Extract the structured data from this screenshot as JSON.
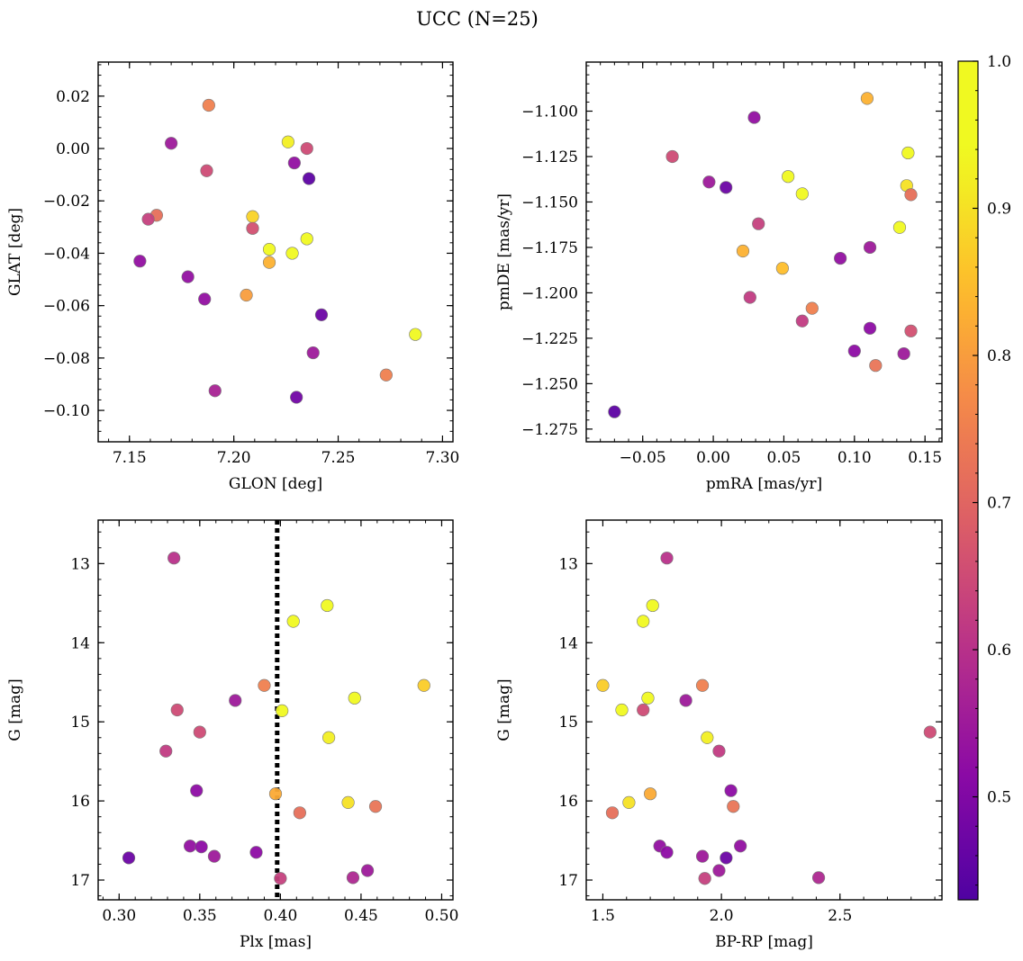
{
  "figure_title": "UCC (N=25)",
  "colorbar": {
    "range": [
      0.43,
      1.0
    ],
    "ticks": [
      "0.5",
      "0.6",
      "0.7",
      "0.8",
      "0.9",
      "1.0"
    ],
    "tick_values": [
      0.5,
      0.6,
      0.7,
      0.8,
      0.9,
      1.0
    ],
    "colormap": "plasma"
  },
  "chart_data": [
    {
      "type": "scatter",
      "xlabel": "GLON [deg]",
      "ylabel": "GLAT [deg]",
      "xlim": [
        7.135,
        7.305
      ],
      "ylim": [
        -0.112,
        0.033
      ],
      "xticks": [
        7.15,
        7.2,
        7.25,
        7.3
      ],
      "xtick_labels": [
        "7.15",
        "7.20",
        "7.25",
        "7.30"
      ],
      "yticks": [
        0.02,
        0.0,
        -0.02,
        -0.04,
        -0.06,
        -0.08,
        -0.1
      ],
      "ytick_labels": [
        "0.02",
        "0.00",
        "−0.02",
        "−0.04",
        "−0.06",
        "−0.08",
        "−0.10"
      ],
      "points": [
        {
          "x": 7.188,
          "y": 0.0165,
          "c": 0.75
        },
        {
          "x": 7.17,
          "y": 0.002,
          "c": 0.55
        },
        {
          "x": 7.226,
          "y": 0.0025,
          "c": 0.92
        },
        {
          "x": 7.235,
          "y": 0.0,
          "c": 0.65
        },
        {
          "x": 7.229,
          "y": -0.0055,
          "c": 0.53
        },
        {
          "x": 7.187,
          "y": -0.0085,
          "c": 0.65
        },
        {
          "x": 7.236,
          "y": -0.0115,
          "c": 0.45
        },
        {
          "x": 7.163,
          "y": -0.0255,
          "c": 0.72
        },
        {
          "x": 7.159,
          "y": -0.027,
          "c": 0.63
        },
        {
          "x": 7.209,
          "y": -0.026,
          "c": 0.88
        },
        {
          "x": 7.209,
          "y": -0.0305,
          "c": 0.66
        },
        {
          "x": 7.235,
          "y": -0.0345,
          "c": 0.97
        },
        {
          "x": 7.217,
          "y": -0.0385,
          "c": 1.0
        },
        {
          "x": 7.228,
          "y": -0.04,
          "c": 0.98
        },
        {
          "x": 7.155,
          "y": -0.043,
          "c": 0.53
        },
        {
          "x": 7.217,
          "y": -0.0435,
          "c": 0.83
        },
        {
          "x": 7.178,
          "y": -0.049,
          "c": 0.53
        },
        {
          "x": 7.206,
          "y": -0.056,
          "c": 0.8
        },
        {
          "x": 7.186,
          "y": -0.0575,
          "c": 0.53
        },
        {
          "x": 7.242,
          "y": -0.0635,
          "c": 0.47
        },
        {
          "x": 7.287,
          "y": -0.071,
          "c": 0.98
        },
        {
          "x": 7.238,
          "y": -0.078,
          "c": 0.55
        },
        {
          "x": 7.273,
          "y": -0.0865,
          "c": 0.75
        },
        {
          "x": 7.191,
          "y": -0.0925,
          "c": 0.57
        },
        {
          "x": 7.23,
          "y": -0.095,
          "c": 0.48
        }
      ]
    },
    {
      "type": "scatter",
      "xlabel": "pmRA [mas/yr]",
      "ylabel": "pmDE [mas/yr]",
      "xlim": [
        -0.09,
        0.162
      ],
      "ylim": [
        -1.282,
        -1.073
      ],
      "xticks": [
        -0.05,
        0.0,
        0.05,
        0.1,
        0.15
      ],
      "xtick_labels": [
        "−0.05",
        "0.00",
        "0.05",
        "0.10",
        "0.15"
      ],
      "yticks": [
        -1.1,
        -1.125,
        -1.15,
        -1.175,
        -1.2,
        -1.225,
        -1.25,
        -1.275
      ],
      "ytick_labels": [
        "−1.100",
        "−1.125",
        "−1.150",
        "−1.175",
        "−1.200",
        "−1.225",
        "−1.250",
        "−1.275"
      ],
      "points": [
        {
          "x": 0.109,
          "y": -1.093,
          "c": 0.83
        },
        {
          "x": 0.029,
          "y": -1.1035,
          "c": 0.53
        },
        {
          "x": -0.029,
          "y": -1.125,
          "c": 0.65
        },
        {
          "x": 0.138,
          "y": -1.123,
          "c": 0.98
        },
        {
          "x": 0.053,
          "y": -1.136,
          "c": 0.95
        },
        {
          "x": -0.003,
          "y": -1.139,
          "c": 0.55
        },
        {
          "x": 0.009,
          "y": -1.142,
          "c": 0.47
        },
        {
          "x": 0.137,
          "y": -1.141,
          "c": 0.9
        },
        {
          "x": 0.063,
          "y": -1.1455,
          "c": 0.98
        },
        {
          "x": 0.14,
          "y": -1.146,
          "c": 0.72
        },
        {
          "x": 0.032,
          "y": -1.162,
          "c": 0.63
        },
        {
          "x": 0.132,
          "y": -1.164,
          "c": 0.95
        },
        {
          "x": 0.111,
          "y": -1.175,
          "c": 0.55
        },
        {
          "x": 0.021,
          "y": -1.177,
          "c": 0.83
        },
        {
          "x": 0.09,
          "y": -1.181,
          "c": 0.53
        },
        {
          "x": 0.049,
          "y": -1.1865,
          "c": 0.85
        },
        {
          "x": 0.026,
          "y": -1.2025,
          "c": 0.62
        },
        {
          "x": 0.07,
          "y": -1.2085,
          "c": 0.75
        },
        {
          "x": 0.063,
          "y": -1.2155,
          "c": 0.62
        },
        {
          "x": 0.111,
          "y": -1.2195,
          "c": 0.52
        },
        {
          "x": 0.14,
          "y": -1.221,
          "c": 0.66
        },
        {
          "x": 0.1,
          "y": -1.232,
          "c": 0.52
        },
        {
          "x": 0.135,
          "y": -1.2335,
          "c": 0.55
        },
        {
          "x": 0.115,
          "y": -1.24,
          "c": 0.73
        },
        {
          "x": -0.07,
          "y": -1.2655,
          "c": 0.45
        }
      ]
    },
    {
      "type": "scatter",
      "xlabel": "Plx [mas]",
      "ylabel": "G [mag]",
      "xlim": [
        0.287,
        0.507
      ],
      "ylim": [
        17.25,
        12.45
      ],
      "y_inverted": true,
      "vline": 0.398,
      "xticks": [
        0.3,
        0.35,
        0.4,
        0.45,
        0.5
      ],
      "xtick_labels": [
        "0.30",
        "0.35",
        "0.40",
        "0.45",
        "0.50"
      ],
      "yticks": [
        13,
        14,
        15,
        16,
        17
      ],
      "ytick_labels": [
        "13",
        "14",
        "15",
        "16",
        "17"
      ],
      "points": [
        {
          "x": 0.334,
          "y": 12.93,
          "c": 0.6
        },
        {
          "x": 0.429,
          "y": 13.53,
          "c": 0.97
        },
        {
          "x": 0.408,
          "y": 13.73,
          "c": 0.98
        },
        {
          "x": 0.39,
          "y": 14.54,
          "c": 0.75
        },
        {
          "x": 0.489,
          "y": 14.54,
          "c": 0.87
        },
        {
          "x": 0.446,
          "y": 14.7,
          "c": 0.98
        },
        {
          "x": 0.372,
          "y": 14.73,
          "c": 0.55
        },
        {
          "x": 0.336,
          "y": 14.85,
          "c": 0.65
        },
        {
          "x": 0.401,
          "y": 14.86,
          "c": 1.0
        },
        {
          "x": 0.35,
          "y": 15.13,
          "c": 0.65
        },
        {
          "x": 0.43,
          "y": 15.2,
          "c": 0.92
        },
        {
          "x": 0.329,
          "y": 15.37,
          "c": 0.62
        },
        {
          "x": 0.348,
          "y": 15.87,
          "c": 0.52
        },
        {
          "x": 0.397,
          "y": 15.91,
          "c": 0.82
        },
        {
          "x": 0.442,
          "y": 16.02,
          "c": 0.9
        },
        {
          "x": 0.459,
          "y": 16.07,
          "c": 0.73
        },
        {
          "x": 0.412,
          "y": 16.15,
          "c": 0.72
        },
        {
          "x": 0.344,
          "y": 16.57,
          "c": 0.53
        },
        {
          "x": 0.351,
          "y": 16.58,
          "c": 0.52
        },
        {
          "x": 0.385,
          "y": 16.65,
          "c": 0.52
        },
        {
          "x": 0.359,
          "y": 16.7,
          "c": 0.55
        },
        {
          "x": 0.306,
          "y": 16.72,
          "c": 0.47
        },
        {
          "x": 0.454,
          "y": 16.88,
          "c": 0.55
        },
        {
          "x": 0.4,
          "y": 16.98,
          "c": 0.63
        },
        {
          "x": 0.445,
          "y": 16.97,
          "c": 0.58
        }
      ]
    },
    {
      "type": "scatter",
      "xlabel": "BP-RP [mag]",
      "ylabel": "G [mag]",
      "xlim": [
        1.43,
        2.93
      ],
      "ylim": [
        17.25,
        12.45
      ],
      "y_inverted": true,
      "xticks": [
        1.5,
        2.0,
        2.5
      ],
      "xtick_labels": [
        "1.5",
        "2.0",
        "2.5"
      ],
      "yticks": [
        13,
        14,
        15,
        16,
        17
      ],
      "ytick_labels": [
        "13",
        "14",
        "15",
        "16",
        "17"
      ],
      "points": [
        {
          "x": 1.77,
          "y": 12.93,
          "c": 0.6
        },
        {
          "x": 1.71,
          "y": 13.53,
          "c": 0.97
        },
        {
          "x": 1.67,
          "y": 13.73,
          "c": 0.98
        },
        {
          "x": 1.5,
          "y": 14.54,
          "c": 0.87
        },
        {
          "x": 1.92,
          "y": 14.54,
          "c": 0.75
        },
        {
          "x": 1.69,
          "y": 14.7,
          "c": 0.98
        },
        {
          "x": 1.85,
          "y": 14.73,
          "c": 0.55
        },
        {
          "x": 1.58,
          "y": 14.85,
          "c": 1.0
        },
        {
          "x": 1.67,
          "y": 14.85,
          "c": 0.65
        },
        {
          "x": 2.88,
          "y": 15.13,
          "c": 0.65
        },
        {
          "x": 1.94,
          "y": 15.2,
          "c": 0.92
        },
        {
          "x": 1.99,
          "y": 15.37,
          "c": 0.62
        },
        {
          "x": 2.04,
          "y": 15.87,
          "c": 0.52
        },
        {
          "x": 1.7,
          "y": 15.91,
          "c": 0.82
        },
        {
          "x": 1.61,
          "y": 16.02,
          "c": 0.9
        },
        {
          "x": 2.05,
          "y": 16.07,
          "c": 0.73
        },
        {
          "x": 1.54,
          "y": 16.15,
          "c": 0.72
        },
        {
          "x": 1.74,
          "y": 16.57,
          "c": 0.53
        },
        {
          "x": 2.08,
          "y": 16.57,
          "c": 0.53
        },
        {
          "x": 1.77,
          "y": 16.65,
          "c": 0.52
        },
        {
          "x": 1.92,
          "y": 16.7,
          "c": 0.55
        },
        {
          "x": 2.02,
          "y": 16.72,
          "c": 0.47
        },
        {
          "x": 1.99,
          "y": 16.88,
          "c": 0.55
        },
        {
          "x": 1.93,
          "y": 16.98,
          "c": 0.63
        },
        {
          "x": 2.41,
          "y": 16.97,
          "c": 0.58
        }
      ]
    }
  ]
}
